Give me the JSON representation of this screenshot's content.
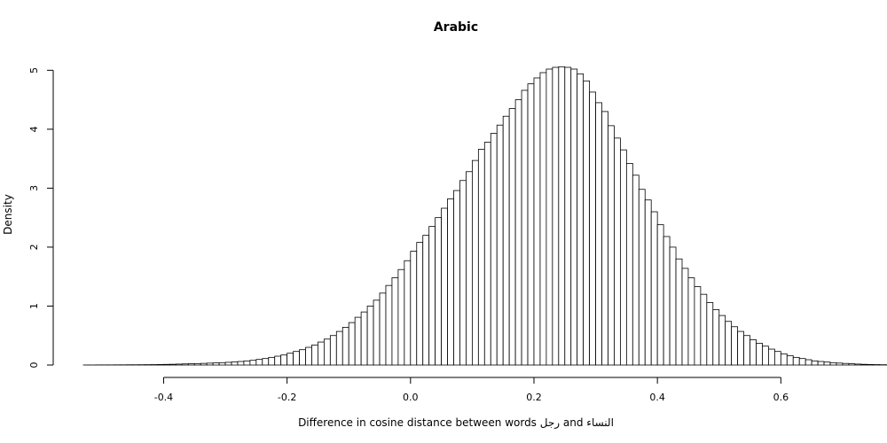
{
  "chart_data": {
    "type": "bar",
    "title": "Arabic",
    "xlabel": "Difference in cosine distance between words رجل and النساء",
    "ylabel": "Density",
    "xlim": [
      -0.53,
      0.68
    ],
    "ylim": [
      0,
      5.08
    ],
    "x_ticks": [
      -0.4,
      -0.2,
      0.0,
      0.2,
      0.4,
      0.6
    ],
    "x_tick_labels": [
      "-0.4",
      "-0.2",
      "0.0",
      "0.2",
      "0.4",
      "0.6"
    ],
    "y_ticks": [
      0,
      1,
      2,
      3,
      4,
      5
    ],
    "y_tick_labels": [
      "0",
      "1",
      "2",
      "3",
      "4",
      "5"
    ],
    "grid": false,
    "bin_width": 0.01,
    "bin_start": -0.53,
    "values": [
      0.001,
      0.001,
      0.002,
      0.002,
      0.002,
      0.003,
      0.003,
      0.004,
      0.004,
      0.005,
      0.006,
      0.007,
      0.009,
      0.011,
      0.013,
      0.016,
      0.019,
      0.022,
      0.025,
      0.028,
      0.032,
      0.036,
      0.04,
      0.046,
      0.053,
      0.06,
      0.07,
      0.08,
      0.095,
      0.11,
      0.13,
      0.15,
      0.17,
      0.2,
      0.23,
      0.26,
      0.3,
      0.34,
      0.39,
      0.44,
      0.5,
      0.57,
      0.64,
      0.72,
      0.81,
      0.9,
      1.0,
      1.1,
      1.22,
      1.35,
      1.48,
      1.62,
      1.77,
      1.93,
      2.08,
      2.2,
      2.35,
      2.5,
      2.66,
      2.82,
      2.96,
      3.13,
      3.28,
      3.47,
      3.66,
      3.78,
      3.93,
      4.07,
      4.22,
      4.35,
      4.5,
      4.66,
      4.77,
      4.87,
      4.96,
      5.02,
      5.05,
      5.06,
      5.05,
      5.02,
      4.94,
      4.82,
      4.63,
      4.45,
      4.3,
      4.06,
      3.85,
      3.65,
      3.42,
      3.22,
      2.98,
      2.8,
      2.6,
      2.38,
      2.18,
      2.0,
      1.8,
      1.64,
      1.48,
      1.33,
      1.2,
      1.06,
      0.94,
      0.84,
      0.74,
      0.65,
      0.57,
      0.5,
      0.43,
      0.37,
      0.32,
      0.27,
      0.23,
      0.19,
      0.16,
      0.13,
      0.11,
      0.09,
      0.07,
      0.06,
      0.05,
      0.04,
      0.033,
      0.027,
      0.021,
      0.016,
      0.012,
      0.009,
      0.007,
      0.005,
      0.004,
      0.003,
      0.002,
      0.002,
      0.001,
      0.001,
      0.001,
      0.001,
      0.001,
      0.001,
      0.001,
      0.001,
      0.001,
      0.001,
      0.001,
      0.001,
      0.001,
      0.001,
      0.001,
      0.001,
      0.001,
      0.001,
      0.001,
      0.001,
      0.001,
      0.001,
      0.001,
      0.001,
      0.001,
      0.001,
      0.001,
      0.001,
      0.001,
      0.001,
      0.001,
      0.001,
      0.001,
      0.001,
      0.001,
      0.001,
      0.001,
      0.001,
      0.001,
      0.001,
      0.001,
      0.001,
      0.001,
      0.001,
      0.001,
      0.001,
      0.001,
      0.001,
      0.001,
      0.001,
      0.001,
      0.001,
      0.001,
      0.001,
      0.001,
      0.001,
      0.001,
      0.001,
      0.001,
      0.001,
      0.001,
      0.001,
      0.001,
      0.001,
      0.001,
      0.001,
      0.001,
      0.001,
      0.001,
      0.001,
      0.001,
      0.001,
      0.001,
      0.001,
      0.001,
      0.001,
      0.001
    ]
  }
}
